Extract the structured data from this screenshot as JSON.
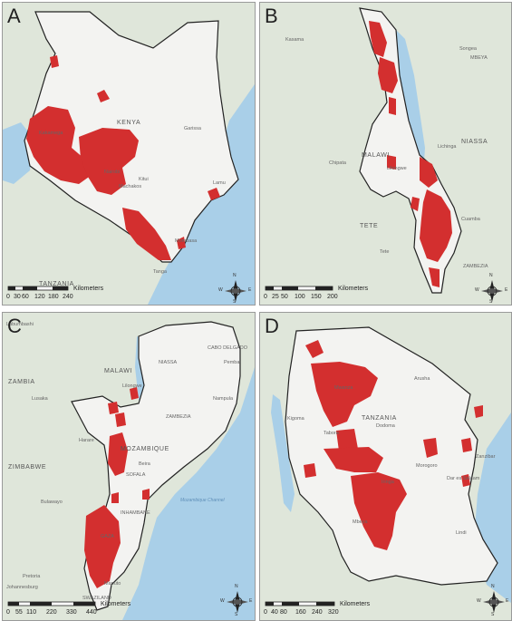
{
  "panels": {
    "a": {
      "letter": "A",
      "labels": [
        "KENYA",
        "TANZANIA",
        "Kakamega",
        "Nairobi",
        "Garissa",
        "Mombasa",
        "Machakos",
        "Kitui",
        "Lamu",
        "Tanga"
      ],
      "scale": {
        "ticks": [
          "0",
          "30",
          "60",
          "120",
          "180",
          "240"
        ],
        "unit": "Kilometers"
      }
    },
    "b": {
      "letter": "B",
      "labels": [
        "MALAWI",
        "NIASSA",
        "TETE",
        "Lilongwe",
        "Chipata",
        "Lichinga",
        "Kasama",
        "Songea",
        "Cuamba",
        "Tete",
        "ZAMBEZIA",
        "MBEYA"
      ],
      "scale": {
        "ticks": [
          "0",
          "25",
          "50",
          "100",
          "150",
          "200"
        ],
        "unit": "Kilometers"
      }
    },
    "c": {
      "letter": "C",
      "labels": [
        "ZAMBIA",
        "MALAWI",
        "ZIMBABWE",
        "MOZAMBIQUE",
        "Lubumbashi",
        "Lilongwe",
        "Lusaka",
        "Harare",
        "Bulawayo",
        "Maputo",
        "Beira",
        "Nampula",
        "CABO DELGADO",
        "NIASSA",
        "ZAMBEZIA",
        "SOFALA",
        "GAZA",
        "INHAMBANE",
        "Mozambique Channel",
        "Pretoria",
        "Johannesburg",
        "SWAZILAND",
        "Pemba"
      ],
      "scale": {
        "ticks": [
          "0",
          "55",
          "110",
          "220",
          "330",
          "440"
        ],
        "unit": "Kilometers"
      }
    },
    "d": {
      "letter": "D",
      "labels": [
        "TANZANIA",
        "Dodoma",
        "Dar es Salaam",
        "Mwanza",
        "Arusha",
        "Tabora",
        "Mbeya",
        "Zanzibar",
        "Kigoma",
        "Iringa",
        "Morogoro",
        "Lindi"
      ],
      "scale": {
        "ticks": [
          "0",
          "40",
          "80",
          "160",
          "240",
          "320"
        ],
        "unit": "Kilometers"
      }
    }
  },
  "compass": {
    "n": "N",
    "e": "E",
    "s": "S",
    "w": "W"
  },
  "colors": {
    "highlight": "#d32f2f",
    "border": "#222222",
    "land": "#dfe6da",
    "country": "#f3f3f1",
    "water": "#a9cfe8"
  }
}
